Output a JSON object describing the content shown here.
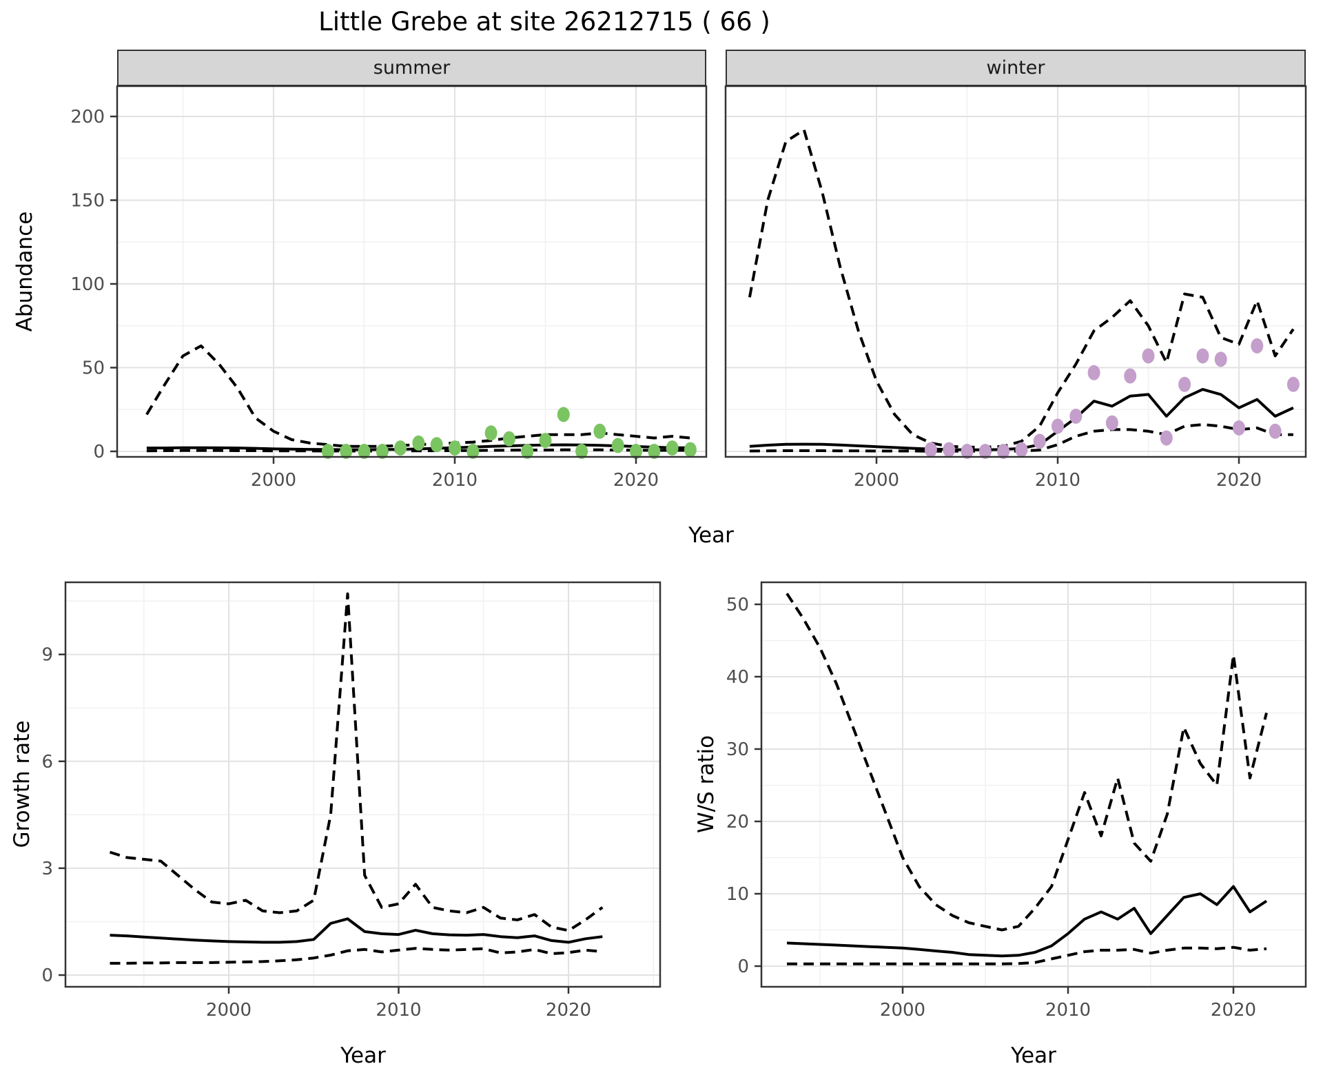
{
  "title": "Little Grebe at site 26212715 ( 66 )",
  "colors": {
    "summer_points": "#7BC462",
    "winter_points": "#C49FCB",
    "line": "#000000",
    "strip_fill": "#D6D6D6",
    "panel_border": "#333333",
    "grid_major": "#E2E2E2",
    "grid_minor": "#F1F1F1",
    "tick_label": "#4D4D4D"
  },
  "top": {
    "facets": [
      {
        "label": "summer"
      },
      {
        "label": "winter"
      }
    ],
    "y_axis_title": "Abundance",
    "x_axis_title": "Year",
    "y_ticks": [
      0,
      50,
      100,
      150,
      200
    ],
    "x_ticks": [
      2000,
      2010,
      2020
    ]
  },
  "bottom_left": {
    "y_axis_title": "Growth rate",
    "x_axis_title": "Year",
    "y_ticks": [
      0,
      3,
      6,
      9
    ],
    "x_ticks": [
      2000,
      2010,
      2020
    ]
  },
  "bottom_right": {
    "y_axis_title": "W/S ratio",
    "x_axis_title": "Year",
    "y_ticks": [
      0,
      10,
      20,
      30,
      40,
      50
    ],
    "x_ticks": [
      2000,
      2010,
      2020
    ]
  },
  "chart_data": [
    {
      "id": "abundance-summer",
      "type": "line",
      "facet": "summer",
      "xlabel": "Year",
      "ylabel": "Abundance",
      "xlim": [
        1991.5,
        2023.8
      ],
      "ylim": [
        -3,
        218
      ],
      "x": [
        1993,
        1994,
        1995,
        1996,
        1997,
        1998,
        1999,
        2000,
        2001,
        2002,
        2003,
        2004,
        2005,
        2006,
        2007,
        2008,
        2009,
        2010,
        2011,
        2012,
        2013,
        2014,
        2015,
        2016,
        2017,
        2018,
        2019,
        2020,
        2021,
        2022,
        2023
      ],
      "series": [
        {
          "name": "upper-ci",
          "style": "dashed",
          "color": "#000000",
          "values": [
            22,
            40,
            57,
            63,
            52,
            38,
            20,
            12,
            7,
            5,
            4,
            3,
            3,
            3,
            3.5,
            4,
            4.5,
            5,
            5.5,
            6.5,
            8,
            9,
            10,
            10,
            10,
            11,
            10,
            9,
            8,
            9,
            8
          ]
        },
        {
          "name": "estimate",
          "style": "solid",
          "color": "#000000",
          "values": [
            2,
            2,
            2.2,
            2.2,
            2.1,
            2,
            1.8,
            1.5,
            1.3,
            1.2,
            1.1,
            1,
            1,
            1.1,
            1.2,
            1.5,
            1.8,
            2.2,
            2.6,
            3,
            3.3,
            3.6,
            3.8,
            3.9,
            3.8,
            3.6,
            3.3,
            2.9,
            2.5,
            2.2,
            2.2
          ]
        },
        {
          "name": "lower-ci",
          "style": "dashed",
          "color": "#000000",
          "values": [
            0.3,
            0.4,
            0.5,
            0.5,
            0.5,
            0.4,
            0.4,
            0.3,
            0.3,
            0.3,
            0.2,
            0.2,
            0.2,
            0.2,
            0.3,
            0.3,
            0.4,
            0.4,
            0.5,
            0.6,
            0.7,
            0.8,
            0.8,
            0.9,
            0.9,
            0.9,
            0.8,
            0.7,
            0.6,
            0.6,
            0.6
          ]
        }
      ],
      "observations": {
        "name": "observed-counts",
        "color": "#7BC462",
        "x": [
          2003,
          2004,
          2005,
          2006,
          2007,
          2008,
          2009,
          2010,
          2011,
          2012,
          2013,
          2014,
          2015,
          2016,
          2017,
          2018,
          2019,
          2020,
          2021,
          2022,
          2023
        ],
        "values": [
          0,
          0,
          0,
          0,
          2,
          5,
          4,
          2,
          0,
          11,
          7.5,
          0,
          6.5,
          22,
          0,
          12,
          3.5,
          0,
          0,
          2,
          1
        ]
      }
    },
    {
      "id": "abundance-winter",
      "type": "line",
      "facet": "winter",
      "xlabel": "Year",
      "ylabel": "Abundance",
      "xlim": [
        1991.5,
        2023.8
      ],
      "ylim": [
        -3,
        218
      ],
      "x": [
        1993,
        1994,
        1995,
        1996,
        1997,
        1998,
        1999,
        2000,
        2001,
        2002,
        2003,
        2004,
        2005,
        2006,
        2007,
        2008,
        2009,
        2010,
        2011,
        2012,
        2013,
        2014,
        2015,
        2016,
        2017,
        2018,
        2019,
        2020,
        2021,
        2022,
        2023
      ],
      "series": [
        {
          "name": "upper-ci",
          "style": "dashed",
          "color": "#000000",
          "values": [
            92,
            150,
            185,
            192,
            155,
            110,
            72,
            42,
            22,
            10,
            5,
            3,
            2.5,
            2.5,
            3,
            6,
            15,
            35,
            52,
            72,
            80,
            90,
            75,
            53,
            94,
            92,
            68,
            64,
            90,
            57,
            73
          ]
        },
        {
          "name": "estimate",
          "style": "solid",
          "color": "#000000",
          "values": [
            3,
            3.7,
            4.2,
            4.3,
            4.2,
            3.8,
            3.3,
            2.8,
            2.3,
            1.8,
            1.4,
            1.1,
            0.9,
            0.9,
            1.1,
            1.8,
            4,
            12,
            20,
            30,
            27,
            33,
            34,
            21,
            32,
            37,
            34,
            26,
            31,
            21,
            26
          ]
        },
        {
          "name": "lower-ci",
          "style": "dashed",
          "color": "#000000",
          "values": [
            0.2,
            0.3,
            0.4,
            0.4,
            0.4,
            0.3,
            0.3,
            0.2,
            0.2,
            0.2,
            0.1,
            0.1,
            0.1,
            0.1,
            0.1,
            0.2,
            0.8,
            4,
            9,
            12,
            13,
            13,
            12,
            10,
            15,
            16,
            15,
            13,
            14,
            10,
            10
          ]
        }
      ],
      "observations": {
        "name": "observed-counts",
        "color": "#C49FCB",
        "x": [
          2003,
          2004,
          2005,
          2006,
          2007,
          2008,
          2009,
          2010,
          2011,
          2012,
          2013,
          2014,
          2015,
          2016,
          2017,
          2018,
          2019,
          2020,
          2021,
          2022,
          2023
        ],
        "values": [
          1,
          1,
          0,
          0,
          0,
          1,
          6,
          15,
          21,
          47,
          17,
          45,
          57,
          8,
          40,
          57,
          55,
          14,
          63,
          12,
          40
        ]
      }
    },
    {
      "id": "growth-rate",
      "type": "line",
      "xlabel": "Year",
      "ylabel": "Growth rate",
      "xlim": [
        1990.4,
        2025.4
      ],
      "ylim": [
        0,
        11
      ],
      "x": [
        1993,
        1994,
        1995,
        1996,
        1997,
        1998,
        1999,
        2000,
        2001,
        2002,
        2003,
        2004,
        2005,
        2006,
        2007,
        2008,
        2009,
        2010,
        2011,
        2012,
        2013,
        2014,
        2015,
        2016,
        2017,
        2018,
        2019,
        2020,
        2021,
        2022
      ],
      "series": [
        {
          "name": "upper-ci",
          "style": "dashed",
          "color": "#000000",
          "values": [
            3.45,
            3.3,
            3.25,
            3.2,
            2.8,
            2.4,
            2.05,
            2.0,
            2.1,
            1.8,
            1.75,
            1.8,
            2.1,
            4.5,
            10.7,
            2.8,
            1.9,
            2.0,
            2.55,
            1.9,
            1.8,
            1.75,
            1.9,
            1.6,
            1.55,
            1.7,
            1.35,
            1.25,
            1.55,
            1.9
          ]
        },
        {
          "name": "estimate",
          "style": "solid",
          "color": "#000000",
          "values": [
            1.12,
            1.1,
            1.07,
            1.04,
            1.01,
            0.98,
            0.96,
            0.94,
            0.93,
            0.92,
            0.92,
            0.94,
            1.0,
            1.45,
            1.58,
            1.22,
            1.16,
            1.14,
            1.26,
            1.16,
            1.13,
            1.12,
            1.14,
            1.08,
            1.05,
            1.1,
            0.97,
            0.92,
            1.02,
            1.08
          ]
        },
        {
          "name": "lower-ci",
          "style": "dashed",
          "color": "#000000",
          "values": [
            0.33,
            0.33,
            0.34,
            0.34,
            0.35,
            0.35,
            0.35,
            0.36,
            0.37,
            0.38,
            0.4,
            0.43,
            0.48,
            0.56,
            0.68,
            0.72,
            0.65,
            0.7,
            0.75,
            0.72,
            0.7,
            0.72,
            0.74,
            0.62,
            0.65,
            0.72,
            0.6,
            0.63,
            0.7,
            0.66
          ]
        }
      ]
    },
    {
      "id": "ws-ratio",
      "type": "line",
      "xlabel": "Year",
      "ylabel": "W/S ratio",
      "xlim": [
        1990.5,
        2025.4
      ],
      "ylim": [
        0,
        53
      ],
      "x": [
        1993,
        1994,
        1995,
        1996,
        1997,
        1998,
        1999,
        2000,
        2001,
        2002,
        2003,
        2004,
        2005,
        2006,
        2007,
        2008,
        2009,
        2010,
        2011,
        2012,
        2013,
        2014,
        2015,
        2016,
        2017,
        2018,
        2019,
        2020,
        2021,
        2022
      ],
      "series": [
        {
          "name": "upper-ci",
          "style": "dashed",
          "color": "#000000",
          "values": [
            51.5,
            48,
            44,
            39,
            33,
            27,
            21,
            15,
            11,
            8.5,
            7,
            6,
            5.5,
            5,
            5.5,
            8,
            11,
            17.5,
            24,
            18,
            26,
            17,
            14.5,
            21,
            33,
            28,
            25,
            43,
            26,
            35
          ]
        },
        {
          "name": "estimate",
          "style": "solid",
          "color": "#000000",
          "values": [
            3.2,
            3.1,
            3.0,
            2.9,
            2.8,
            2.7,
            2.6,
            2.5,
            2.3,
            2.1,
            1.9,
            1.6,
            1.5,
            1.4,
            1.5,
            1.9,
            2.8,
            4.5,
            6.5,
            7.5,
            6.5,
            8,
            4.5,
            7,
            9.5,
            10,
            8.5,
            11,
            7.5,
            9
          ]
        },
        {
          "name": "lower-ci",
          "style": "dashed",
          "color": "#000000",
          "values": [
            0.3,
            0.3,
            0.3,
            0.3,
            0.3,
            0.3,
            0.3,
            0.3,
            0.3,
            0.3,
            0.3,
            0.3,
            0.3,
            0.3,
            0.35,
            0.5,
            1,
            1.5,
            2,
            2.2,
            2.2,
            2.3,
            1.8,
            2.2,
            2.5,
            2.5,
            2.4,
            2.6,
            2.2,
            2.4
          ]
        }
      ]
    }
  ]
}
